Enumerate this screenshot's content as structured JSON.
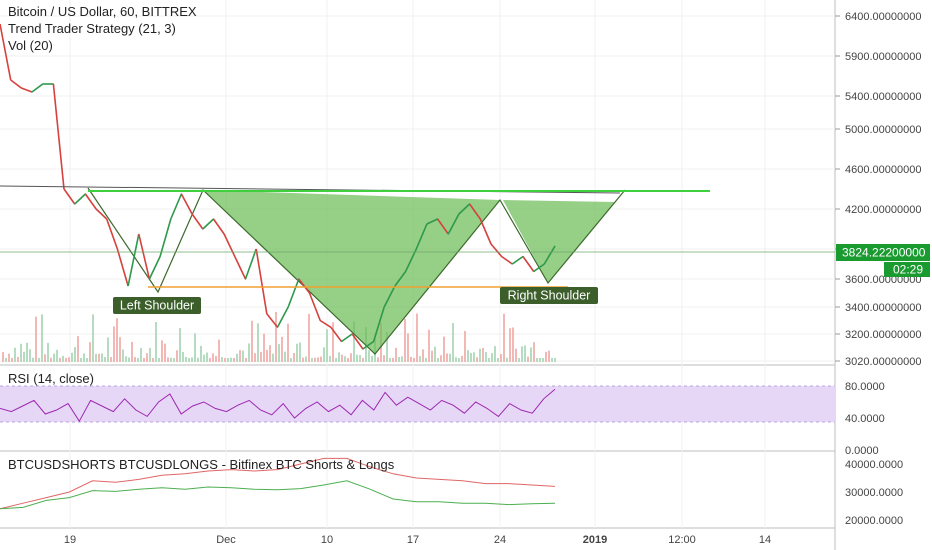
{
  "legends": {
    "main_title": "Bitcoin / US Dollar, 60, BITTREX",
    "strategy": "Trend Trader Strategy (21, 3)",
    "volume": "Vol (20)",
    "rsi": "RSI (14, close)",
    "shorts": "BTCUSDSHORTS BTCUSDLONGS - Bitfinex BTC Shorts & Longs"
  },
  "annotations": {
    "left_shoulder": "Left Shoulder",
    "right_shoulder": "Right Shoulder"
  },
  "price_badge": {
    "price": "3824.22200000",
    "countdown": "02:29"
  },
  "colors": {
    "neckline": "#3ed13e",
    "support": "#f0a030",
    "pattern_fill": "#6aba52",
    "price_badge": "#1a9b30",
    "label_bg": "#3b5e2b",
    "rsi_band": "#e7d7f7",
    "rsi_line": "#9c27b0",
    "shorts_line": "#e06666",
    "longs_line": "#4caf50",
    "candle_up": "#2e9a4a",
    "candle_down": "#d6433d",
    "wma": "#4a5cd6"
  },
  "chart_data": [
    {
      "type": "line",
      "name": "price",
      "ylim": [
        3020,
        6400
      ],
      "y_ticks": [
        "6400.00000000",
        "5900.00000000",
        "5400.00000000",
        "5000.00000000",
        "4600.00000000",
        "4200.00000000",
        "3800.00000000",
        "3600.00000000",
        "3400.00000000",
        "3200.00000000",
        "3020.00000000"
      ],
      "x_ticks": [
        "19",
        "Dec",
        "10",
        "17",
        "24",
        "2019",
        "12:00",
        "14"
      ],
      "series": [
        {
          "values": [
            6300,
            5600,
            5500,
            5450,
            5550,
            5550,
            4400,
            4250,
            4350,
            4200,
            4100,
            3800,
            3550,
            3950,
            3600,
            3750,
            4100,
            4350,
            4150,
            4000,
            4100,
            3950,
            3750,
            3600,
            3800,
            3350,
            3250,
            3400,
            3600,
            3500,
            3300,
            3250,
            3150,
            3200,
            3100,
            3150,
            3400,
            3550,
            3650,
            3800,
            4050,
            4100,
            3950,
            4150,
            4250,
            4100,
            3850,
            3750,
            3700,
            3750,
            3650,
            3700,
            3830
          ]
        }
      ]
    },
    {
      "type": "line",
      "name": "rsi",
      "ylim": [
        0,
        100
      ],
      "y_ticks": [
        "80.0000",
        "40.0000",
        "0.0000"
      ],
      "series": [
        {
          "values": [
            52,
            48,
            55,
            62,
            45,
            50,
            58,
            36,
            62,
            55,
            48,
            64,
            50,
            42,
            60,
            70,
            45,
            55,
            60,
            52,
            48,
            56,
            62,
            50,
            44,
            58,
            40,
            52,
            60,
            48,
            56,
            44,
            62,
            50,
            72,
            56,
            66,
            58,
            50,
            62,
            56,
            46,
            60,
            52,
            42,
            58,
            50,
            46,
            64,
            76
          ]
        }
      ]
    },
    {
      "type": "line",
      "name": "shorts_longs",
      "ylim": [
        20000,
        40000
      ],
      "y_ticks": [
        "40000.0000",
        "30000.0000",
        "20000.0000"
      ],
      "series": [
        {
          "values": [
            24000,
            26000,
            28000,
            30000,
            34000,
            33500,
            34500,
            36000,
            36500,
            37500,
            38000,
            37500,
            38000,
            40000,
            42000,
            42000,
            39000,
            36500,
            35000,
            34500,
            34000,
            33000,
            33000,
            32500,
            32000
          ]
        },
        {
          "values": [
            24000,
            24500,
            27000,
            28000,
            30500,
            30200,
            31000,
            31500,
            31000,
            31800,
            31500,
            31000,
            30800,
            31200,
            32500,
            34000,
            31000,
            27500,
            26500,
            26500,
            26000,
            26000,
            25500,
            25800,
            26000
          ]
        }
      ]
    }
  ]
}
